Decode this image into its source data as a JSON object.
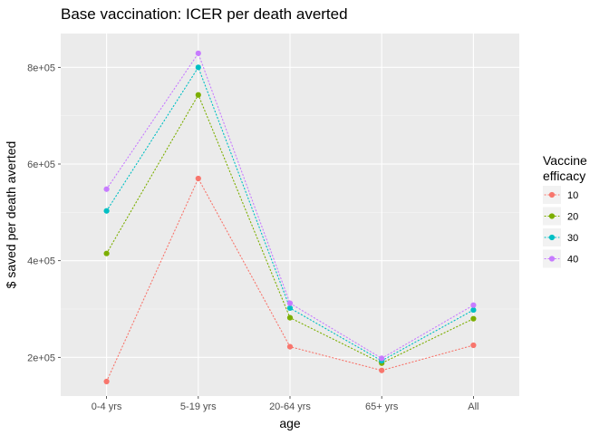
{
  "chart_data": {
    "type": "line",
    "title": "Base vaccination: ICER per death averted",
    "xlabel": "age",
    "ylabel": "$ saved per death averted",
    "categories": [
      "0-4 yrs",
      "5-19 yrs",
      "20-64 yrs",
      "65+ yrs",
      "All"
    ],
    "ylim": [
      120000,
      870000
    ],
    "yticks": [
      {
        "value": 200000,
        "label": "2e+05"
      },
      {
        "value": 400000,
        "label": "4e+05"
      },
      {
        "value": 600000,
        "label": "6e+05"
      },
      {
        "value": 800000,
        "label": "8e+05"
      }
    ],
    "legend": {
      "title_line1": "Vaccine",
      "title_line2": "efficacy",
      "position": "right"
    },
    "grid": true,
    "line_style": "dotted",
    "series": [
      {
        "name": "10",
        "color": "#F8766D",
        "values": [
          150000,
          570000,
          222000,
          173000,
          225000
        ]
      },
      {
        "name": "20",
        "color": "#7CAE00",
        "values": [
          415000,
          743000,
          282000,
          188000,
          280000
        ]
      },
      {
        "name": "30",
        "color": "#00BFC4",
        "values": [
          503000,
          800000,
          302000,
          193000,
          298000
        ]
      },
      {
        "name": "40",
        "color": "#C77CFF",
        "values": [
          548000,
          829000,
          312000,
          198000,
          308000
        ]
      }
    ]
  }
}
